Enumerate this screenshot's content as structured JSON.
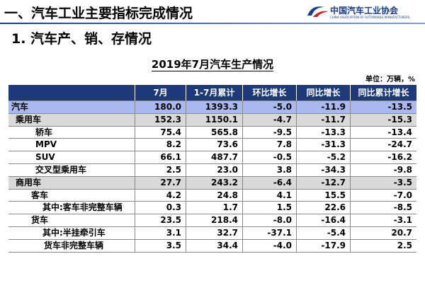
{
  "header": {
    "title": "一、汽车工业主要指标完成情况",
    "org": "中国汽车工业协会",
    "org_en": "CHINA ASSOCIATION OF AUTOMOBILE MANUFACTURERS"
  },
  "section": "1. 汽车产、销、存情况",
  "table": {
    "title": "2019年7月汽车生产情况",
    "unit": "单位：万辆，%",
    "columns": [
      "",
      "7月",
      "1-7月累计",
      "环比增长",
      "同比增长",
      "同比累计增长"
    ],
    "rows": [
      [
        "汽车",
        "180.0",
        "1393.3",
        "-5.0",
        "-11.9",
        "-13.5"
      ],
      [
        "乘用车",
        "152.3",
        "1150.1",
        "-4.7",
        "-11.7",
        "-15.3"
      ],
      [
        "轿车",
        "75.4",
        "565.8",
        "-9.5",
        "-13.3",
        "-13.4"
      ],
      [
        "MPV",
        "8.2",
        "73.6",
        "7.8",
        "-31.3",
        "-24.7"
      ],
      [
        "SUV",
        "66.1",
        "487.7",
        "-0.5",
        "-5.2",
        "-16.2"
      ],
      [
        "交叉型乘用车",
        "2.5",
        "23.0",
        "3.8",
        "-34.3",
        "-9.8"
      ],
      [
        "商用车",
        "27.7",
        "243.2",
        "-6.4",
        "-12.7",
        "-3.5"
      ],
      [
        "客车",
        "4.2",
        "24.8",
        "4.1",
        "15.5",
        "-7.0"
      ],
      [
        "其中:客车非完整车辆",
        "0.3",
        "1.7",
        "1.5",
        "22.6",
        "-8.5"
      ],
      [
        "货车",
        "23.5",
        "218.4",
        "-8.0",
        "-16.4",
        "-3.1"
      ],
      [
        "其中:半挂牵引车",
        "3.1",
        "32.7",
        "-37.1",
        "-5.4",
        "20.7"
      ],
      [
        "货车非完整车辆",
        "3.5",
        "34.4",
        "-4.0",
        "-17.9",
        "2.5"
      ]
    ]
  }
}
